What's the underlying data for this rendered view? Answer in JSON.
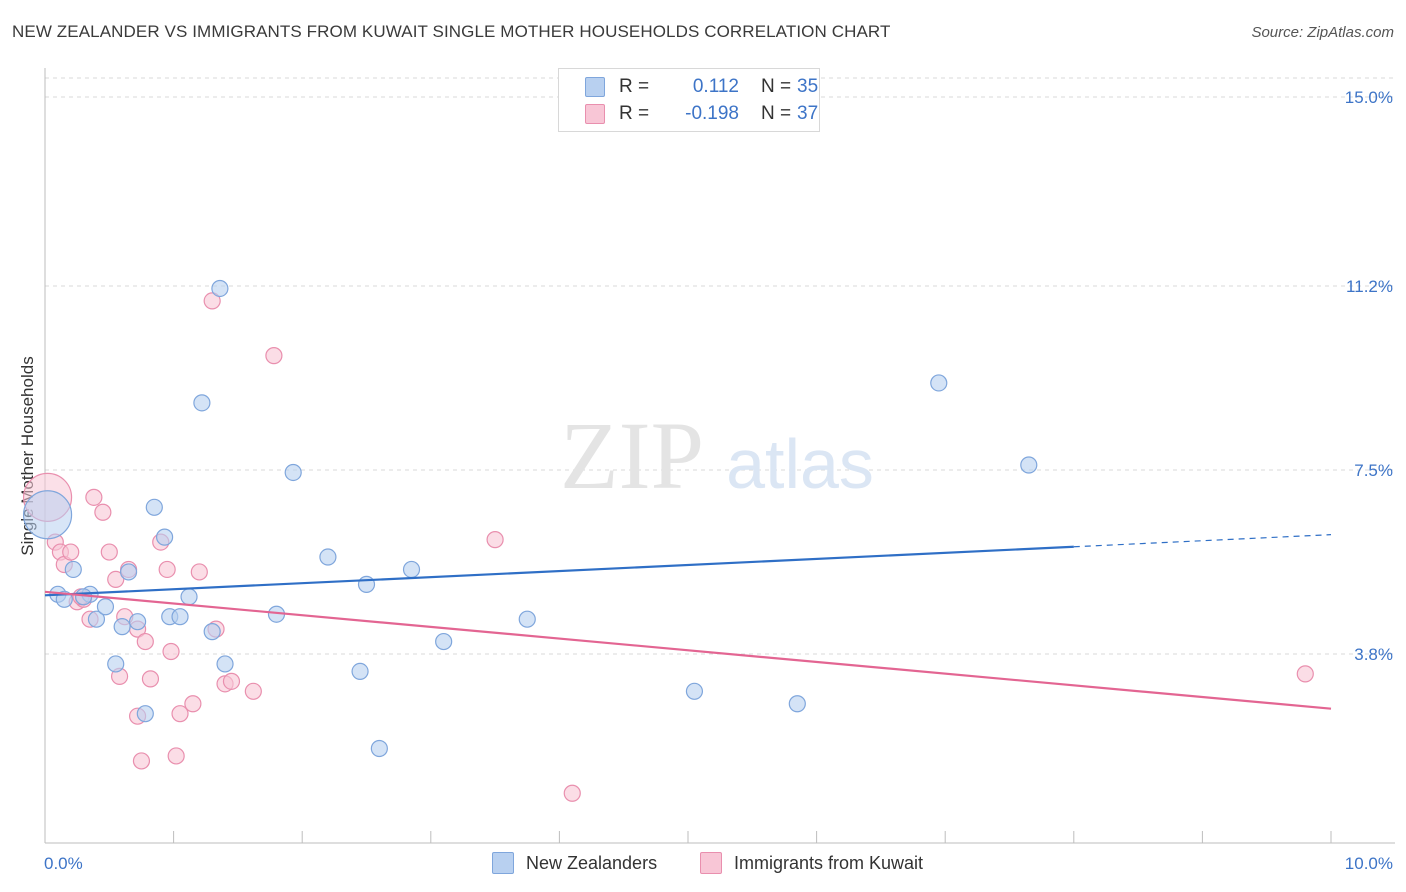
{
  "header": {
    "title": "NEW ZEALANDER VS IMMIGRANTS FROM KUWAIT SINGLE MOTHER HOUSEHOLDS CORRELATION CHART",
    "source": "Source: ZipAtlas.com"
  },
  "watermark": {
    "zip": "ZIP",
    "atlas": "atlas"
  },
  "legend": {
    "series1": {
      "r_label": "R =",
      "r_value": "0.112",
      "n_label": "N =",
      "n_value": "35"
    },
    "series2": {
      "r_label": "R =",
      "r_value": "-0.198",
      "n_label": "N =",
      "n_value": "37"
    }
  },
  "bottom_legend": {
    "series1": "New Zealanders",
    "series2": "Immigrants from Kuwait"
  },
  "colors": {
    "blue_fill": "#b8d0f0",
    "blue_stroke": "#7fa6dc",
    "blue_line": "#2f6fc6",
    "pink_fill": "#f8c6d6",
    "pink_stroke": "#e98fae",
    "pink_line": "#e36592",
    "grid": "#d9d9d9",
    "axis_text": "#3d74c7"
  },
  "chart_data": {
    "type": "scatter",
    "title": "NEW ZEALANDER VS IMMIGRANTS FROM KUWAIT SINGLE MOTHER HOUSEHOLDS CORRELATION CHART",
    "xlabel": "",
    "ylabel": "Single Mother Households",
    "xlim": [
      0,
      10
    ],
    "ylim": [
      0,
      15.5
    ],
    "x_tick_labels": [
      "0.0%",
      "10.0%"
    ],
    "y_ticks": [
      3.8,
      7.5,
      11.2,
      15.0
    ],
    "y_tick_labels": [
      "3.8%",
      "7.5%",
      "11.2%",
      "15.0%"
    ],
    "grid": true,
    "series": [
      {
        "name": "New Zealanders",
        "color": "blue",
        "points": [
          [
            0.02,
            6.6
          ],
          [
            0.1,
            5.0
          ],
          [
            0.15,
            4.9
          ],
          [
            0.22,
            5.5
          ],
          [
            0.35,
            5.0
          ],
          [
            0.4,
            4.5
          ],
          [
            0.47,
            4.75
          ],
          [
            0.55,
            3.6
          ],
          [
            0.6,
            4.35
          ],
          [
            0.65,
            5.45
          ],
          [
            0.72,
            4.45
          ],
          [
            0.78,
            2.6
          ],
          [
            0.85,
            6.75
          ],
          [
            0.93,
            6.15
          ],
          [
            0.97,
            4.55
          ],
          [
            1.05,
            4.55
          ],
          [
            1.12,
            4.95
          ],
          [
            1.22,
            8.85
          ],
          [
            1.3,
            4.25
          ],
          [
            1.36,
            11.15
          ],
          [
            1.4,
            3.6
          ],
          [
            1.8,
            4.6
          ],
          [
            1.93,
            7.45
          ],
          [
            2.2,
            5.75
          ],
          [
            2.45,
            3.45
          ],
          [
            2.5,
            5.2
          ],
          [
            2.6,
            1.9
          ],
          [
            2.85,
            5.5
          ],
          [
            3.1,
            4.05
          ],
          [
            3.75,
            4.5
          ],
          [
            5.05,
            3.05
          ],
          [
            5.85,
            2.8
          ],
          [
            6.95,
            9.25
          ],
          [
            7.65,
            7.6
          ],
          [
            0.3,
            4.95
          ]
        ]
      },
      {
        "name": "Immigrants from Kuwait",
        "color": "pink",
        "points": [
          [
            0.02,
            6.95
          ],
          [
            0.08,
            6.05
          ],
          [
            0.12,
            5.85
          ],
          [
            0.15,
            5.6
          ],
          [
            0.2,
            5.85
          ],
          [
            0.25,
            4.85
          ],
          [
            0.3,
            4.9
          ],
          [
            0.35,
            4.5
          ],
          [
            0.38,
            6.95
          ],
          [
            0.45,
            6.65
          ],
          [
            0.5,
            5.85
          ],
          [
            0.55,
            5.3
          ],
          [
            0.58,
            3.35
          ],
          [
            0.62,
            4.55
          ],
          [
            0.65,
            5.5
          ],
          [
            0.72,
            4.3
          ],
          [
            0.72,
            2.55
          ],
          [
            0.75,
            1.65
          ],
          [
            0.78,
            4.05
          ],
          [
            0.82,
            3.3
          ],
          [
            0.9,
            6.05
          ],
          [
            0.95,
            5.5
          ],
          [
            0.98,
            3.85
          ],
          [
            1.02,
            1.75
          ],
          [
            1.05,
            2.6
          ],
          [
            1.15,
            2.8
          ],
          [
            1.2,
            5.45
          ],
          [
            1.3,
            10.9
          ],
          [
            1.33,
            4.3
          ],
          [
            1.4,
            3.2
          ],
          [
            1.45,
            3.25
          ],
          [
            1.62,
            3.05
          ],
          [
            1.78,
            9.8
          ],
          [
            3.5,
            6.1
          ],
          [
            4.1,
            1.0
          ],
          [
            9.8,
            3.4
          ],
          [
            0.28,
            4.95
          ]
        ]
      }
    ],
    "trendlines": [
      {
        "series": "New Zealanders",
        "x": [
          0,
          10
        ],
        "y": [
          4.98,
          6.2
        ],
        "solid_until_x": 8.0
      },
      {
        "series": "Immigrants from Kuwait",
        "x": [
          0,
          10
        ],
        "y": [
          5.05,
          2.7
        ]
      }
    ]
  }
}
